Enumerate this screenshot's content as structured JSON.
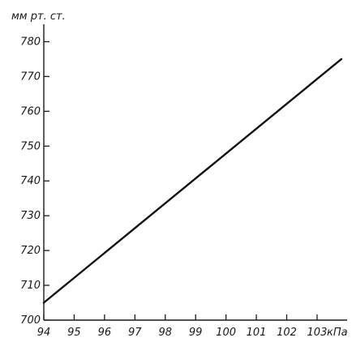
{
  "chart_data": {
    "type": "line",
    "ylabel": "мм рт. ст.",
    "xlabel": "кПа",
    "x_ticks": [
      "94",
      "95",
      "96",
      "97",
      "98",
      "99",
      "100",
      "101",
      "102",
      "103"
    ],
    "y_ticks": [
      "700",
      "710",
      "720",
      "730",
      "740",
      "750",
      "760",
      "770",
      "780"
    ],
    "xlim": [
      94,
      104.15
    ],
    "ylim": [
      700,
      785
    ],
    "grid": false,
    "series": [
      {
        "x": [
          94,
          103.8
        ],
        "y": [
          705,
          775
        ]
      }
    ]
  }
}
